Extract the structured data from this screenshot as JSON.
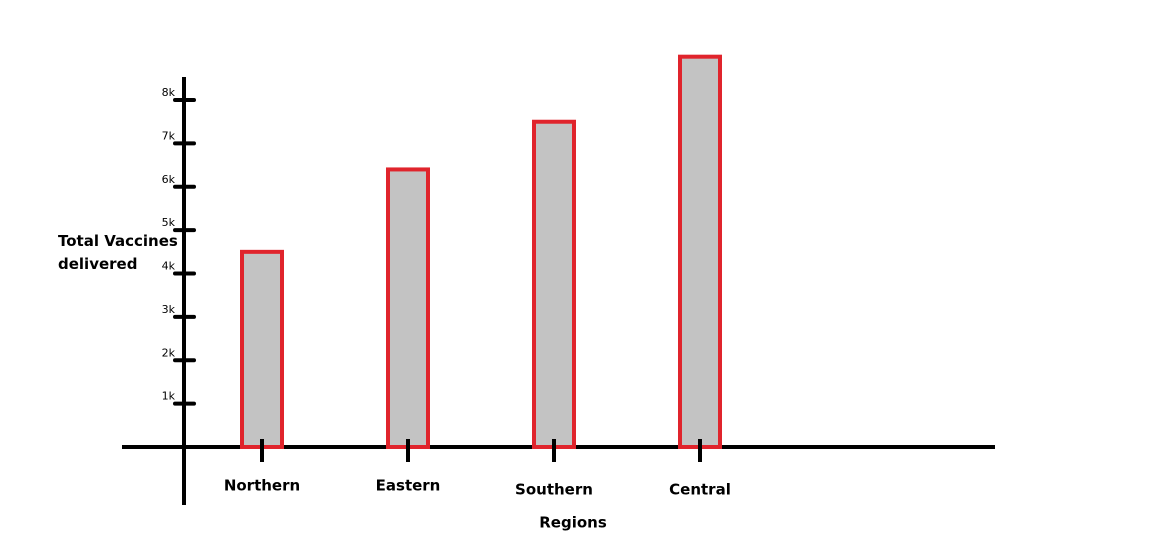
{
  "chart_data": {
    "type": "bar",
    "x_label": "Regions",
    "y_label": "Total Vaccines delivered",
    "categories": [
      "Northern",
      "Eastern",
      "Southern",
      "Central"
    ],
    "values": [
      4500,
      6400,
      7500,
      9000
    ],
    "color": "#c3c3c3",
    "edge_color": "#e0242c",
    "ylim": [
      0,
      9500
    ],
    "yticks": [
      {
        "value": 1000,
        "label": "1k"
      },
      {
        "value": 2000,
        "label": "2k"
      },
      {
        "value": 3000,
        "label": "3k"
      },
      {
        "value": 4000,
        "label": "4k"
      },
      {
        "value": 5000,
        "label": "5k"
      },
      {
        "value": 6000,
        "label": "6k"
      },
      {
        "value": 7000,
        "label": "7k"
      },
      {
        "value": 8000,
        "label": "8k"
      }
    ],
    "grid": false
  }
}
